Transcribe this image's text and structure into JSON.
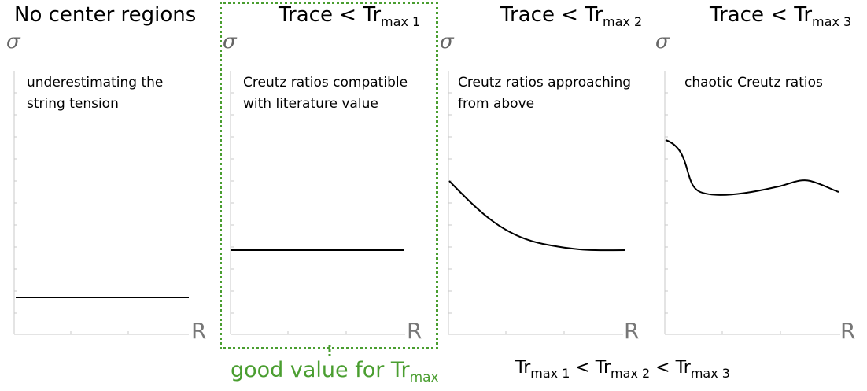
{
  "panels": [
    {
      "title": "No center regions",
      "title_sub": "",
      "note_line1": "underestimating the",
      "note_line2": "string tension",
      "y_label": "σ",
      "x_label": "R"
    },
    {
      "title": "Trace < Tr",
      "title_sub": "max 1",
      "note_line1": "Creutz ratios compatible",
      "note_line2": "with literature value",
      "y_label": "σ",
      "x_label": "R"
    },
    {
      "title": "Trace < Tr",
      "title_sub": "max 2",
      "note_line1": "Creutz ratios approaching",
      "note_line2": "from above",
      "y_label": "σ",
      "x_label": "R"
    },
    {
      "title": "Trace < Tr",
      "title_sub": "max 3",
      "note_line1": "chaotic Creutz ratios",
      "note_line2": "",
      "y_label": "σ",
      "x_label": "R"
    }
  ],
  "highlight": {
    "label": "good value for Tr",
    "label_sub": "max",
    "color": "#4a9e30"
  },
  "footer": {
    "p1": "Tr",
    "s1": "max 1",
    "p2": " < Tr",
    "s2": "max 2",
    "p3": " < Tr",
    "s3": "max 3"
  }
}
